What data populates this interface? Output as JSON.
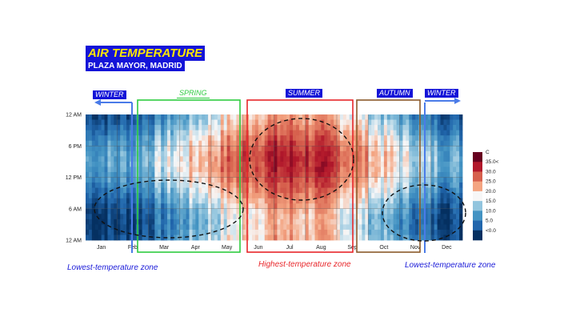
{
  "header": {
    "title": "AIR TEMPERATURE",
    "subtitle": "PLAZA MAYOR, MADRID"
  },
  "seasons": [
    {
      "label": "WINTER",
      "color": "#1a1ad8"
    },
    {
      "label": "SPRING",
      "color": "#2ecc40"
    },
    {
      "label": "SUMMER",
      "color": "#e8262a"
    },
    {
      "label": "AUTUMN",
      "color": "#8b5a2b"
    },
    {
      "label": "WINTER",
      "color": "#1a1ad8"
    }
  ],
  "annotations": {
    "low_left": "Lowest-temperature zone",
    "high": "Highest-temperature zone",
    "low_right": "Lowest-temperature zone"
  },
  "chart_data": {
    "type": "heatmap",
    "x_tick_labels": [
      "Jan",
      "Feb",
      "Mar",
      "Apr",
      "May",
      "Jun",
      "Jul",
      "Aug",
      "Sep",
      "Oct",
      "Nov",
      "Dec"
    ],
    "y_tick_labels": [
      "12 AM",
      "6 PM",
      "12 PM",
      "6 AM",
      "12 AM"
    ],
    "colorbar": {
      "unit": "C",
      "tick_labels": [
        "35.0<",
        "30.0",
        "25.0",
        "20.0",
        "15.0",
        "10.0",
        "5.0",
        "<0.0"
      ],
      "colors": [
        "#67001f",
        "#b2182b",
        "#d6604d",
        "#f4a582",
        "#f7f7f7",
        "#92c5de",
        "#4393c3",
        "#2166ac",
        "#053061"
      ]
    },
    "grid": true
  }
}
